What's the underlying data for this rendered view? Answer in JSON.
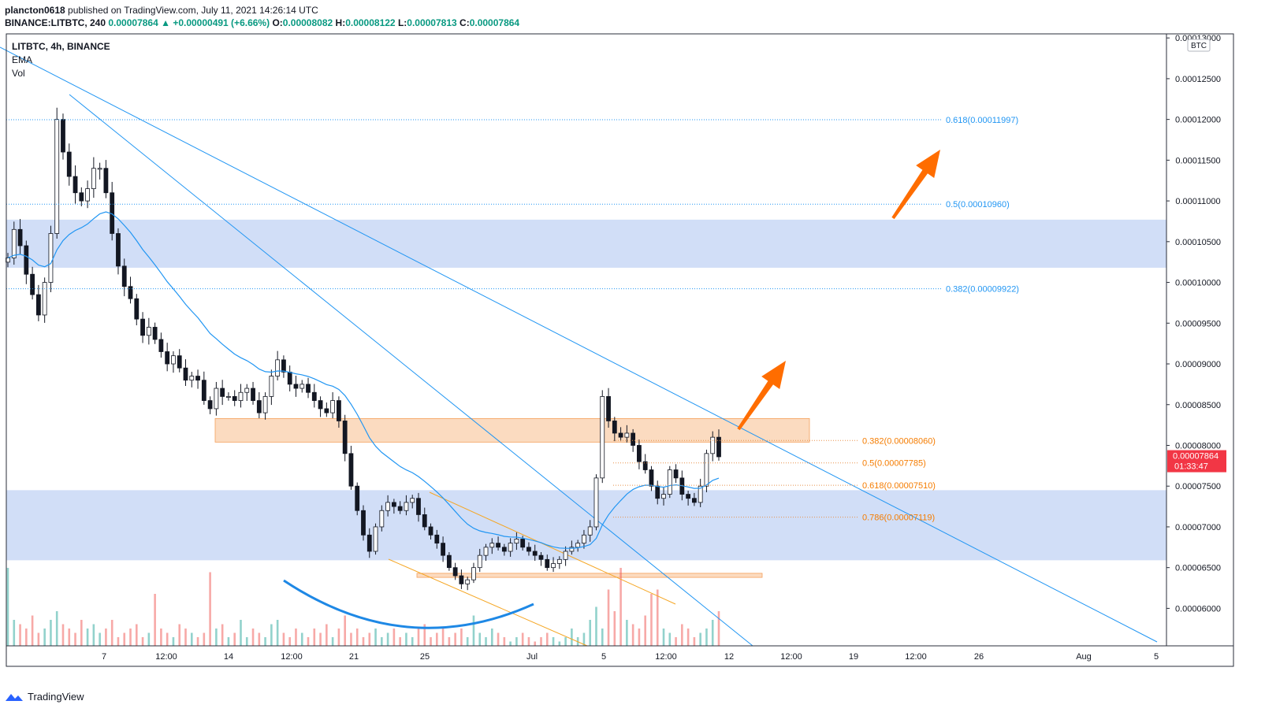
{
  "header": {
    "author": "plancton0618",
    "published_text": "published on TradingView.com, July 11, 2021 14:26:14 UTC",
    "symbol_line": "BINANCE:LITBTC, 240",
    "last": "0.00007864",
    "change": "▲ +0.00000491 (+6.66%)",
    "o_label": "O:",
    "o": "0.00008082",
    "h_label": "H:",
    "h": "0.00008122",
    "l_label": "L:",
    "l": "0.00007813",
    "c_label": "C:",
    "c": "0.00007864"
  },
  "legend": {
    "title": "LITBTC, 4h, BINANCE",
    "ema": "EMA",
    "vol": "Vol"
  },
  "price_tag": {
    "price": "0.00007864",
    "countdown": "01:33:47",
    "currency": "BTC"
  },
  "brand": "TradingView",
  "colors": {
    "up": "#26a69a",
    "down": "#ef5350",
    "line": "#2196f3",
    "fib_orange": "#f57c00",
    "zone_blue": "#c5d6f5",
    "zone_orange": "#fad2b0",
    "arrow": "#ff6d00"
  },
  "chart_data": {
    "type": "candlestick",
    "title": "LITBTC, 4h, BINANCE",
    "ylim": [
      5.54e-05,
      0.0001305
    ],
    "y_ticks": [
      "0.00006000",
      "0.00006500",
      "0.00007000",
      "0.00007500",
      "0.00008000",
      "0.00008500",
      "0.00009000",
      "0.00009500",
      "0.00010000",
      "0.00010500",
      "0.00011000",
      "0.00011500",
      "0.00012000",
      "0.00012500",
      "0.00013000"
    ],
    "x_ticks": [
      "7",
      "12:00",
      "14",
      "12:00",
      "21",
      "25",
      "Jul",
      "5",
      "12:00",
      "12",
      "12:00",
      "19",
      "12:00",
      "26",
      "Aug",
      "5"
    ],
    "fib_levels_upper": [
      {
        "label": "0.618(0.00011997)",
        "price": 0.00011997
      },
      {
        "label": "0.5(0.00010960)",
        "price": 0.0001096
      },
      {
        "label": "0.382(0.00009922)",
        "price": 9.922e-05
      }
    ],
    "fib_levels_lower": [
      {
        "label": "0.382(0.00008060)",
        "price": 8.06e-05
      },
      {
        "label": "0.5(0.00007785)",
        "price": 7.785e-05
      },
      {
        "label": "0.618(0.00007510)",
        "price": 7.51e-05
      },
      {
        "label": "0.786(0.00007119)",
        "price": 7.119e-05
      }
    ],
    "zones": [
      {
        "type": "blue",
        "low": 0.0001018,
        "high": 0.0001077
      },
      {
        "type": "blue",
        "low": 6.59e-05,
        "high": 7.45e-05
      },
      {
        "type": "orange",
        "low": 8.04e-05,
        "high": 8.33e-05
      },
      {
        "type": "orange",
        "low": 6.38e-05,
        "high": 6.43e-05
      }
    ],
    "price_path": [
      0.000103,
      0.0001065,
      0.0001045,
      0.000101,
      9.85e-05,
      9.6e-05,
      0.0001,
      0.000106,
      0.00012,
      0.000116,
      0.000113,
      0.000111,
      0.00011,
      0.0001115,
      0.000114,
      0.000114,
      0.000111,
      0.000106,
      0.000102,
      9.95e-05,
      9.8e-05,
      9.55e-05,
      9.35e-05,
      9.45e-05,
      9.3e-05,
      9.15e-05,
      9e-05,
      9.1e-05,
      8.95e-05,
      8.8e-05,
      8.85e-05,
      8.8e-05,
      8.55e-05,
      8.45e-05,
      8.7e-05,
      8.6e-05,
      8.6e-05,
      8.55e-05,
      8.65e-05,
      8.7e-05,
      8.55e-05,
      8.4e-05,
      8.6e-05,
      8.85e-05,
      9.05e-05,
      8.9e-05,
      8.75e-05,
      8.7e-05,
      8.75e-05,
      8.65e-05,
      8.55e-05,
      8.45e-05,
      8.4e-05,
      8.55e-05,
      8.3e-05,
      7.9e-05,
      7.5e-05,
      7.2e-05,
      6.9e-05,
      6.7e-05,
      7e-05,
      7.2e-05,
      7.3e-05,
      7.25e-05,
      7.2e-05,
      7.3e-05,
      7.35e-05,
      7.15e-05,
      7e-05,
      6.9e-05,
      6.8e-05,
      6.65e-05,
      6.5e-05,
      6.4e-05,
      6.3e-05,
      6.35e-05,
      6.5e-05,
      6.65e-05,
      6.75e-05,
      6.8e-05,
      6.75e-05,
      6.7e-05,
      6.8e-05,
      6.85e-05,
      6.75e-05,
      6.7e-05,
      6.65e-05,
      6.6e-05,
      6.5e-05,
      6.55e-05,
      6.6e-05,
      6.7e-05,
      6.75e-05,
      6.8e-05,
      6.9e-05,
      7e-05,
      7.6e-05,
      8.6e-05,
      8.3e-05,
      8.15e-05,
      8.1e-05,
      8.15e-05,
      8e-05,
      7.8e-05,
      7.7e-05,
      7.5e-05,
      7.35e-05,
      7.4e-05,
      7.7e-05,
      7.6e-05,
      7.4e-05,
      7.35e-05,
      7.3e-05,
      7.5e-05,
      7.9e-05,
      8.1e-05,
      7.86e-05
    ],
    "volume_levels": [
      0.9,
      0.3,
      0.25,
      0.2,
      0.35,
      0.15,
      0.2,
      0.3,
      0.4,
      0.25,
      0.2,
      0.15,
      0.3,
      0.2,
      0.25,
      0.15,
      0.2,
      0.3,
      0.1,
      0.15,
      0.2,
      0.25,
      0.1,
      0.15,
      0.6,
      0.2,
      0.15,
      0.1,
      0.25,
      0.2,
      0.15,
      0.1,
      0.15,
      0.85,
      0.2,
      0.25,
      0.1,
      0.15,
      0.3,
      0.1,
      0.2,
      0.15,
      0.1,
      0.25,
      0.3,
      0.15,
      0.1,
      0.2,
      0.15,
      0.1,
      0.2,
      0.15,
      0.25,
      0.1,
      0.2,
      0.35,
      0.15,
      0.2,
      0.1,
      0.15,
      0.2,
      0.1,
      0.15,
      0.2,
      0.1,
      0.15,
      0.1,
      0.2,
      0.25,
      0.1,
      0.15,
      0.2,
      0.1,
      0.15,
      0.2,
      0.1,
      0.35,
      0.15,
      0.1,
      0.2,
      0.15,
      0.1,
      0.05,
      0.1,
      0.15,
      0.1,
      0.05,
      0.1,
      0.15,
      0.1,
      0.05,
      0.1,
      0.2,
      0.1,
      0.15,
      0.3,
      0.45,
      0.2,
      0.65,
      0.4,
      0.9,
      0.3,
      0.25,
      0.2,
      0.35,
      0.6,
      0.65,
      0.2,
      0.15,
      0.1,
      0.25,
      0.2,
      0.1,
      0.15,
      0.2,
      0.3,
      0.4
    ]
  }
}
